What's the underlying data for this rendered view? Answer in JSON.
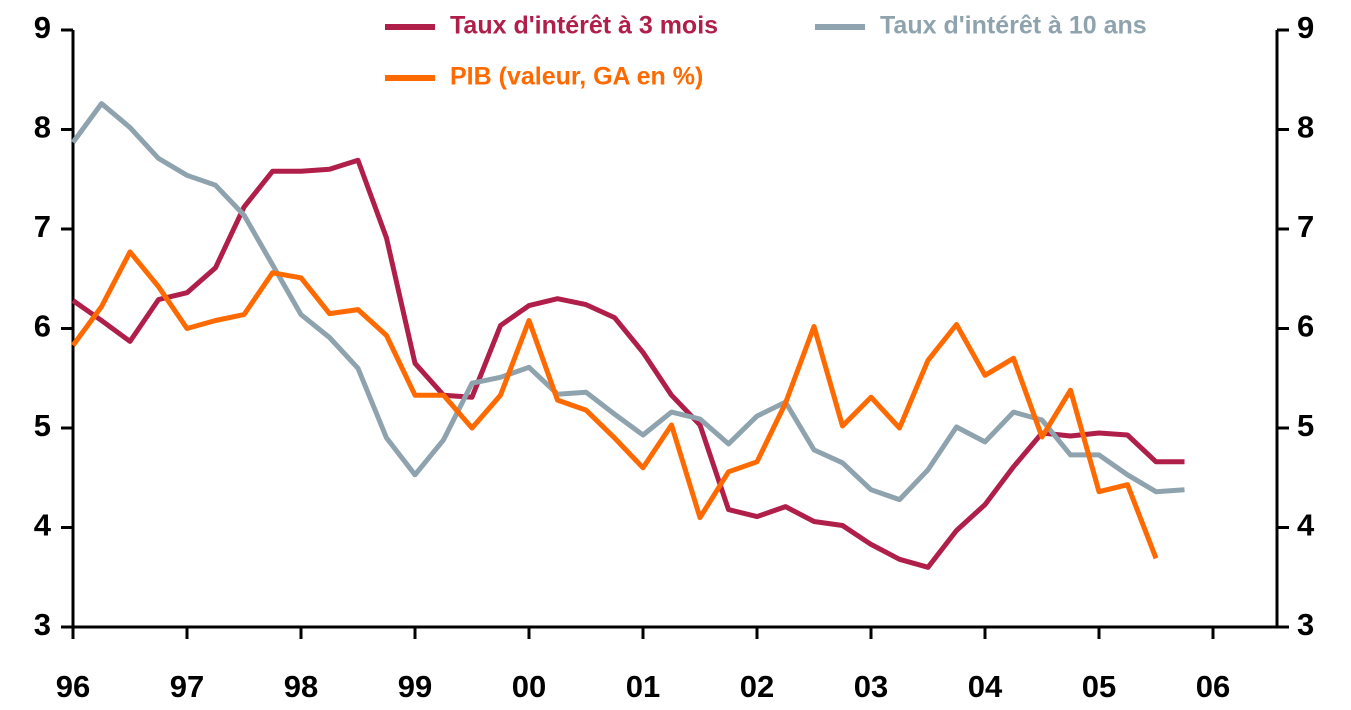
{
  "chart_data": {
    "type": "line",
    "categories": [
      "96",
      null,
      null,
      null,
      "97",
      null,
      null,
      null,
      "98",
      null,
      null,
      null,
      "99",
      null,
      null,
      null,
      "00",
      null,
      null,
      null,
      "01",
      null,
      null,
      null,
      "02",
      null,
      null,
      null,
      "03",
      null,
      null,
      null,
      "04",
      null,
      null,
      null,
      "05",
      null,
      null,
      null,
      "06"
    ],
    "series": [
      {
        "name": "Taux d'intérêt à 3 mois",
        "color": "#b01e4a",
        "values": [
          6.28,
          6.08,
          5.87,
          6.29,
          6.36,
          6.61,
          7.22,
          7.58,
          7.58,
          7.6,
          7.69,
          6.91,
          5.65,
          5.33,
          5.31,
          6.03,
          6.23,
          6.3,
          6.24,
          6.11,
          5.76,
          5.33,
          5.03,
          4.18,
          4.11,
          4.21,
          4.06,
          4.02,
          3.83,
          3.68,
          3.6,
          3.97,
          4.23,
          4.61,
          4.95,
          4.92,
          4.95,
          4.93,
          4.66,
          4.66,
          null
        ]
      },
      {
        "name": "Taux d'intérêt à 10 ans",
        "color": "#8fa3ae",
        "values": [
          7.87,
          8.26,
          8.02,
          7.71,
          7.54,
          7.44,
          7.14,
          6.64,
          6.14,
          5.91,
          5.6,
          4.9,
          4.53,
          4.88,
          5.45,
          5.51,
          5.61,
          5.34,
          5.36,
          5.14,
          4.93,
          5.16,
          5.09,
          4.84,
          5.12,
          5.26,
          4.78,
          4.65,
          4.38,
          4.28,
          4.58,
          5.01,
          4.86,
          5.16,
          5.08,
          4.73,
          4.73,
          4.53,
          4.36,
          4.38,
          null
        ]
      },
      {
        "name": "PIB (valeur, GA en %)",
        "color": "#ff6a00",
        "values": [
          5.83,
          6.22,
          6.77,
          6.42,
          6.0,
          6.08,
          6.14,
          6.56,
          6.51,
          6.15,
          6.19,
          5.93,
          5.33,
          5.33,
          5.0,
          5.33,
          6.08,
          5.28,
          5.18,
          4.9,
          4.6,
          5.03,
          4.1,
          4.56,
          4.66,
          5.25,
          6.02,
          5.02,
          5.31,
          5.0,
          5.68,
          6.04,
          5.53,
          5.7,
          4.91,
          5.38,
          4.36,
          4.43,
          3.69,
          null,
          null
        ]
      }
    ],
    "ylim": [
      3,
      9
    ],
    "yticks": [
      3,
      4,
      5,
      6,
      7,
      8,
      9
    ],
    "y2lim": [
      3,
      9
    ],
    "y2ticks": [
      3,
      4,
      5,
      6,
      7,
      8,
      9
    ]
  }
}
